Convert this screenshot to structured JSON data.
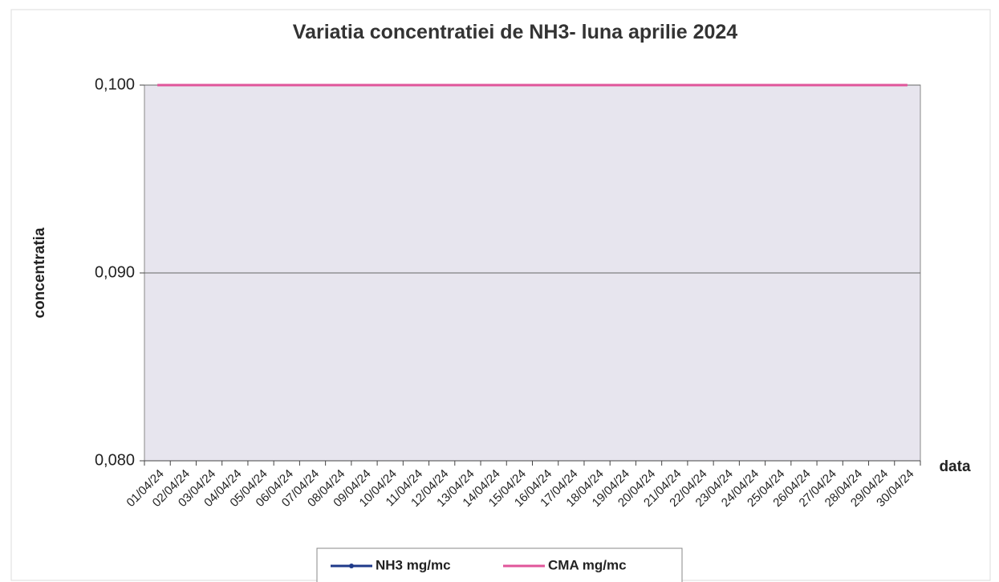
{
  "chart_data": {
    "type": "line",
    "title": "Variatia concentratiei de NH3- luna aprilie 2024",
    "y_label": "concentratia",
    "x_label": "data",
    "categories": [
      "01/04/24",
      "02/04/24",
      "03/04/24",
      "04/04/24",
      "05/04/24",
      "06/04/24",
      "07/04/24",
      "08/04/24",
      "09/04/24",
      "10/04/24",
      "11/04/24",
      "12/04/24",
      "13/04/24",
      "14/04/24",
      "15/04/24",
      "16/04/24",
      "17/04/24",
      "18/04/24",
      "19/04/24",
      "20/04/24",
      "21/04/24",
      "22/04/24",
      "23/04/24",
      "24/04/24",
      "25/04/24",
      "26/04/24",
      "27/04/24",
      "28/04/24",
      "29/04/24",
      "30/04/24"
    ],
    "series": [
      {
        "name": "NH3 mg/mc",
        "color": "#1f3a8a",
        "marker": true,
        "values": [
          null,
          null,
          null,
          null,
          null,
          null,
          null,
          null,
          null,
          null,
          null,
          null,
          null,
          null,
          null,
          null,
          null,
          null,
          null,
          null,
          null,
          null,
          null,
          null,
          null,
          null,
          null,
          null,
          null,
          null
        ]
      },
      {
        "name": "CMA mg/mc",
        "color": "#e0559a",
        "marker": false,
        "values": [
          0.1,
          0.1,
          0.1,
          0.1,
          0.1,
          0.1,
          0.1,
          0.1,
          0.1,
          0.1,
          0.1,
          0.1,
          0.1,
          0.1,
          0.1,
          0.1,
          0.1,
          0.1,
          0.1,
          0.1,
          0.1,
          0.1,
          0.1,
          0.1,
          0.1,
          0.1,
          0.1,
          0.1,
          0.1,
          0.1
        ]
      }
    ],
    "ylim": [
      0.08,
      0.1
    ],
    "yticks": [
      {
        "value": 0.08,
        "label": "0,080"
      },
      {
        "value": 0.09,
        "label": "0,090"
      },
      {
        "value": 0.1,
        "label": "0,100"
      }
    ],
    "grid": true,
    "legend": "bottom",
    "plot_background": "#e7e5ee"
  }
}
